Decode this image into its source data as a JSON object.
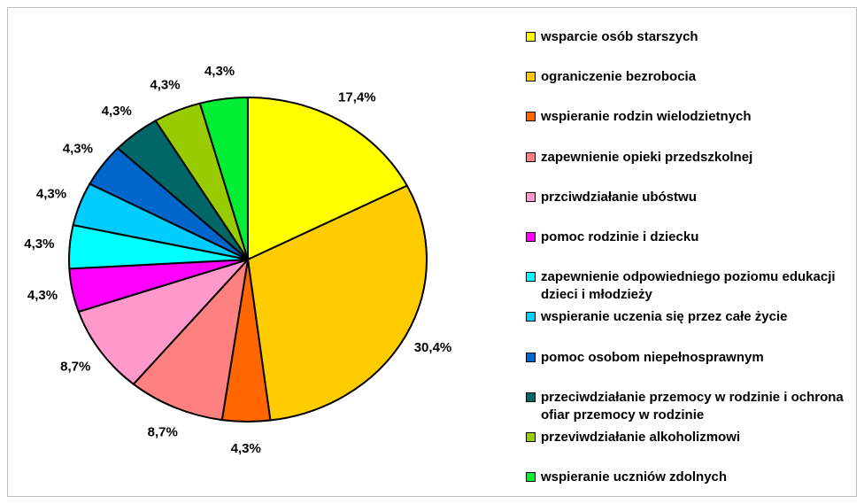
{
  "chart_data": {
    "type": "pie",
    "categories": [
      "wsparcie osób starszych",
      "ograniczenie bezrobocia",
      "wspieranie rodzin wielodzietnych",
      "zapewnienie opieki przedszkolnej",
      "przciwdziałanie ubóstwu",
      "pomoc rodzinie i dziecku",
      "zapewnienie odpowiedniego poziomu edukacji dzieci i młodzieży",
      "wspieranie uczenia się przez całe życie",
      "pomoc osobom niepełnosprawnym",
      "przeciwdziałanie przemocy w rodzinie i ochrona ofiar przemocy w rodzinie",
      "przeviwdziałanie alkoholizmowi",
      "wspieranie uczniów zdolnych"
    ],
    "values": [
      17.4,
      30.4,
      4.3,
      8.7,
      8.7,
      4.3,
      4.3,
      4.3,
      4.3,
      4.3,
      4.3,
      4.3
    ],
    "value_labels": [
      "17,4%",
      "30,4%",
      "4,3%",
      "8,7%",
      "8,7%",
      "4,3%",
      "4,3%",
      "4,3%",
      "4,3%",
      "4,3%",
      "4,3%",
      "4,3%"
    ],
    "colors": [
      "#ffff00",
      "#ffcc00",
      "#ff6600",
      "#ff8080",
      "#ff99cc",
      "#ff00ff",
      "#00ffff",
      "#00ccff",
      "#0066cc",
      "#006666",
      "#99cc00",
      "#00ee33"
    ],
    "legend": "right"
  }
}
